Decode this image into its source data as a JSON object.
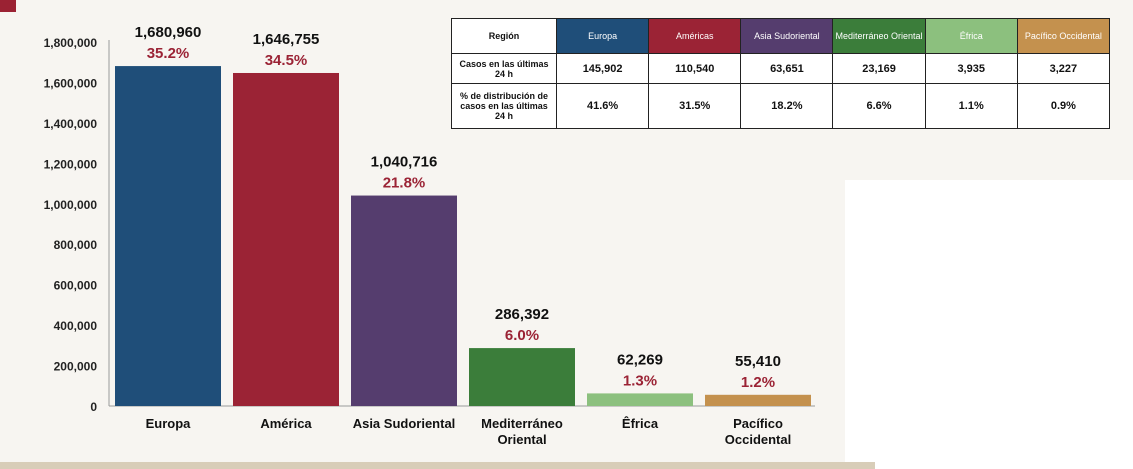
{
  "chart_data": {
    "type": "bar",
    "categories": [
      "Europa",
      "América",
      "Asia Sudoriental",
      "Mediterráneo Oriental",
      "Êfrica",
      "Pacífico Occidental"
    ],
    "category_lines": [
      [
        "Europa"
      ],
      [
        "América"
      ],
      [
        "Asia Sudoriental"
      ],
      [
        "Mediterráneo",
        "Oriental"
      ],
      [
        "Êfrica"
      ],
      [
        "Pacífico",
        "Occidental"
      ]
    ],
    "values": [
      1680960,
      1646755,
      1040716,
      286392,
      62269,
      55410
    ],
    "value_labels": [
      "1,680,960",
      "1,646,755",
      "1,040,716",
      "286,392",
      "62,269",
      "55,410"
    ],
    "percent_labels": [
      "35.2%",
      "34.5%",
      "21.8%",
      "6.0%",
      "1.3%",
      "1.2%"
    ],
    "colors": [
      "#1f4e79",
      "#9b2335",
      "#553d6e",
      "#3b7d3a",
      "#8cc07e",
      "#c4914e"
    ],
    "ylim": [
      0,
      1800000
    ],
    "yticks": [
      0,
      200000,
      400000,
      600000,
      800000,
      1000000,
      1200000,
      1400000,
      1600000,
      1800000
    ],
    "ytick_labels": [
      "0",
      "200,000",
      "400,000",
      "600,000",
      "800,000",
      "1,000,000",
      "1,200,000",
      "1,400,000",
      "1,600,000",
      "1,800,000"
    ],
    "title": "",
    "xlabel": "",
    "ylabel": "",
    "grid": false,
    "legend": "none"
  },
  "table": {
    "header_label": "Región",
    "regions": [
      {
        "label": "Europa",
        "color": "#1f4e79"
      },
      {
        "label": "Américas",
        "color": "#9b2335"
      },
      {
        "label": "Asia Sudoriental",
        "color": "#553d6e"
      },
      {
        "label": "Mediterráneo Oriental",
        "color": "#3b7d3a"
      },
      {
        "label": "Éfrica",
        "color": "#8cc07e"
      },
      {
        "label": "Pacífico Occidental",
        "color": "#c4914e"
      }
    ],
    "rows": [
      {
        "label": "Casos en las últimas 24 h",
        "values": [
          "145,902",
          "110,540",
          "63,651",
          "23,169",
          "3,935",
          "3,227"
        ]
      },
      {
        "label": "% de distribución de casos en las últimas 24 h",
        "values": [
          "41.6%",
          "31.5%",
          "18.2%",
          "6.6%",
          "1.1%",
          "0.9%"
        ]
      }
    ]
  }
}
